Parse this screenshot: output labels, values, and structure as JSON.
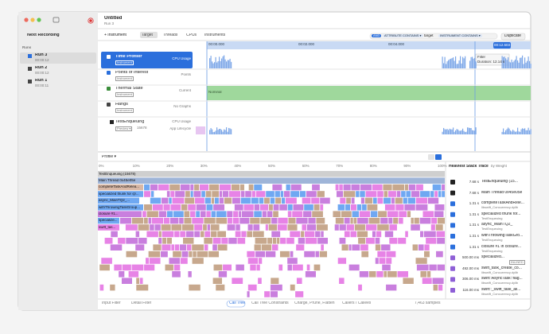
{
  "window": {
    "title": "Untitled",
    "subtitle": "Run 3"
  },
  "sidebar": {
    "next": "Next Recording",
    "section": "Runs",
    "runs": [
      {
        "name": "Run 3",
        "time": "00:00:12"
      },
      {
        "name": "Run 2",
        "time": "00:00:12"
      },
      {
        "name": "Run 1",
        "time": "00:00:11"
      }
    ]
  },
  "toolbar": {
    "add": "+ Instrument",
    "tabs": [
      "Target",
      "Threads",
      "CPUs",
      "Instruments"
    ],
    "filter": {
      "op": "AND",
      "token1": "ATTRIBUTE CONTAINS ▾",
      "value1": "target",
      "token2": "INSTRUMENT CONTAINS ▾"
    },
    "duplicate": "Duplicate"
  },
  "timeline": {
    "ticks": [
      "00:00.000",
      "00:02.000",
      "00:04.000"
    ],
    "current": "00:12.603",
    "filter_title": "Filter",
    "filter_duration": "Duration: 12.14 s"
  },
  "tracks": [
    {
      "name": "Time Profiler",
      "badge": "Instrument",
      "detail": "CPU Usage"
    },
    {
      "name": "Points of Interest",
      "badge": "Instrument",
      "detail": "Points"
    },
    {
      "name": "Thermal State",
      "badge": "Instrument",
      "detail": "Current"
    },
    {
      "name": "Hangs",
      "badge": "Instrument",
      "detail": "No Graphs"
    }
  ],
  "thermal_value": "Nominal",
  "process": {
    "name": "TestEnqueuing",
    "badge": "Preview ▾",
    "pid": "15678",
    "details": [
      "CPU Usage",
      "App Lifecycle"
    ]
  },
  "profile": {
    "mode": "Profile ▾",
    "percent_ticks": [
      "0%",
      "10%",
      "20%",
      "30%",
      "40%",
      "50%",
      "60%",
      "70%",
      "80%",
      "90%",
      "100%"
    ],
    "frames": [
      "TestEnqueuing (15678)",
      "Main Thread 0x45e05e",
      "completeTaskAndRelea...",
      "specialized thunk for @...",
      "async_MainTQ2_...",
      "withThrowingTaskGroup...",
      "closure #1...",
      "specialize...",
      "swift_tas..."
    ]
  },
  "stack": {
    "title": "Heaviest Stack Trace",
    "sort": "by Weight",
    "items": [
      {
        "weight": "7.68 s",
        "name": "TestEnqueuing (15...",
        "lib": ""
      },
      {
        "weight": "7.68 s",
        "name": "Main Thread 0x45e05e",
        "lib": ""
      },
      {
        "weight": "1.31 s",
        "name": "completeTaskAndRele...",
        "lib": "libswift_Concurrency.dylib"
      },
      {
        "weight": "1.31 s",
        "name": "specialized thunk for...",
        "lib": "TestEnqueuing"
      },
      {
        "weight": "1.31 s",
        "name": "async_MainTQ2_",
        "lib": "TestEnqueuing"
      },
      {
        "weight": "1.31 s",
        "name": "withThrowingTaskGro...",
        "lib": "TestEnqueuing"
      },
      {
        "weight": "1.31 s",
        "name": "closure #1 in closure...",
        "lib": "TestEnqueuing"
      },
      {
        "weight": "500.00 ms",
        "name": "specialized...",
        "lib": "INLINED"
      },
      {
        "weight": "492.00 ms",
        "name": "swift_task_create_co...",
        "lib": "libswift_Concurrency.dylib"
      },
      {
        "weight": "306.00 ms",
        "name": "swift::AsyncTask::flag...",
        "lib": "libswift_Concurrency.dylib"
      },
      {
        "weight": "116.00 ms",
        "name": "swift::_swift_task_all...",
        "lib": "libswift_Concurrency.dylib"
      }
    ]
  },
  "bottom": {
    "input": "Input Filter",
    "detail": "Detail Filter",
    "tabs": [
      "Call Tree",
      "Call Tree Constraints",
      "Charge, Prune, Flatten",
      "Callers / Callees"
    ],
    "samples": "7,463 samples"
  }
}
